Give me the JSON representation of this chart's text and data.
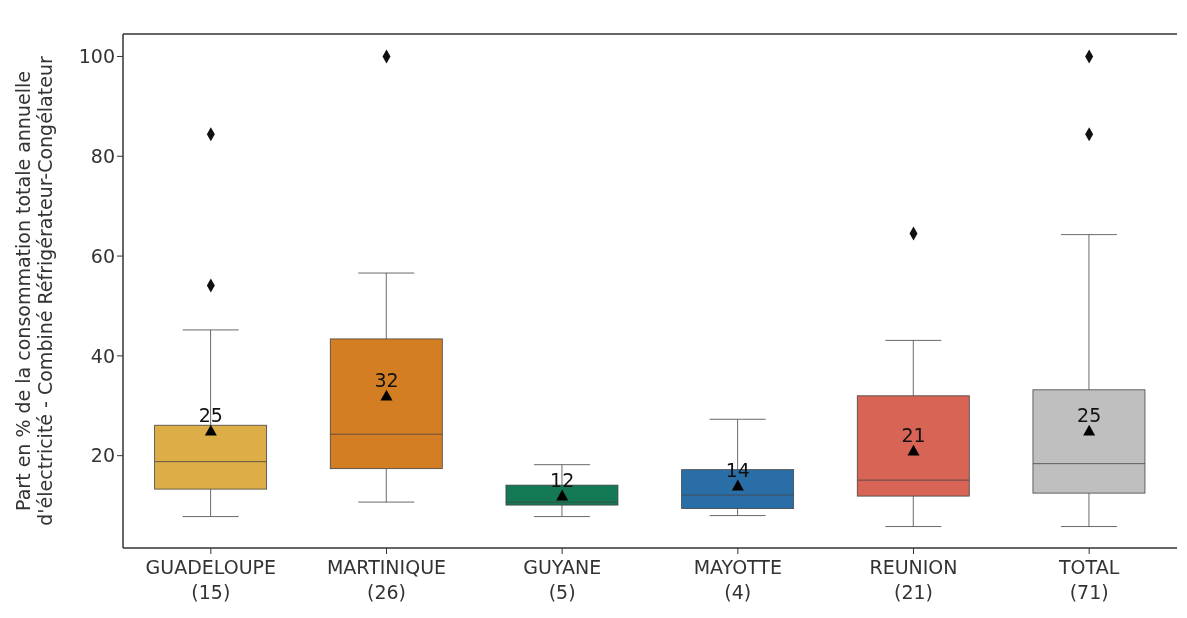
{
  "chart_data": {
    "type": "box",
    "ylabel": "Part en % de la consommation totale annuelle\nd'électricité - Combiné Réfrigérateur-Congélateur",
    "categories": [
      "GUADELOUPE\n(15)",
      "MARTINIQUE\n(26)",
      "GUYANE\n(5)",
      "MAYOTTE\n(4)",
      "REUNION\n(21)",
      "TOTAL\n(71)"
    ],
    "colors": [
      "#ddae47",
      "#d47e24",
      "#137a55",
      "#2a6ea8",
      "#d86455",
      "#bfbfbf"
    ],
    "boxes": [
      {
        "low": 7.8,
        "q1": 13.3,
        "median": 18.8,
        "q3": 26.1,
        "high": 45.2,
        "mean": 25,
        "outliers": [
          84.4,
          54.1
        ]
      },
      {
        "low": 10.7,
        "q1": 17.4,
        "median": 24.3,
        "q3": 43.4,
        "high": 56.6,
        "mean": 32,
        "outliers": [
          100
        ]
      },
      {
        "low": 7.8,
        "q1": 10.1,
        "median": 10.7,
        "q3": 14.1,
        "high": 18.2,
        "mean": 12
      },
      {
        "low": 8.0,
        "q1": 9.4,
        "median": 12.1,
        "q3": 17.2,
        "high": 27.3,
        "mean": 14
      },
      {
        "low": 5.8,
        "q1": 11.9,
        "median": 15.1,
        "q3": 32.0,
        "high": 43.1,
        "mean": 21,
        "outliers": [
          64.5
        ]
      },
      {
        "low": 5.8,
        "q1": 12.5,
        "median": 18.4,
        "q3": 33.2,
        "high": 64.3,
        "mean": 25,
        "outliers": [
          100,
          84.4
        ]
      }
    ],
    "value_labels": [
      "25",
      "32",
      "12",
      "14",
      "21",
      "25"
    ],
    "ylim": [
      1.5,
      104.5
    ],
    "yticks": [
      20,
      40,
      60,
      80,
      100
    ],
    "grid": false,
    "legend": false,
    "marker": "triangle"
  }
}
